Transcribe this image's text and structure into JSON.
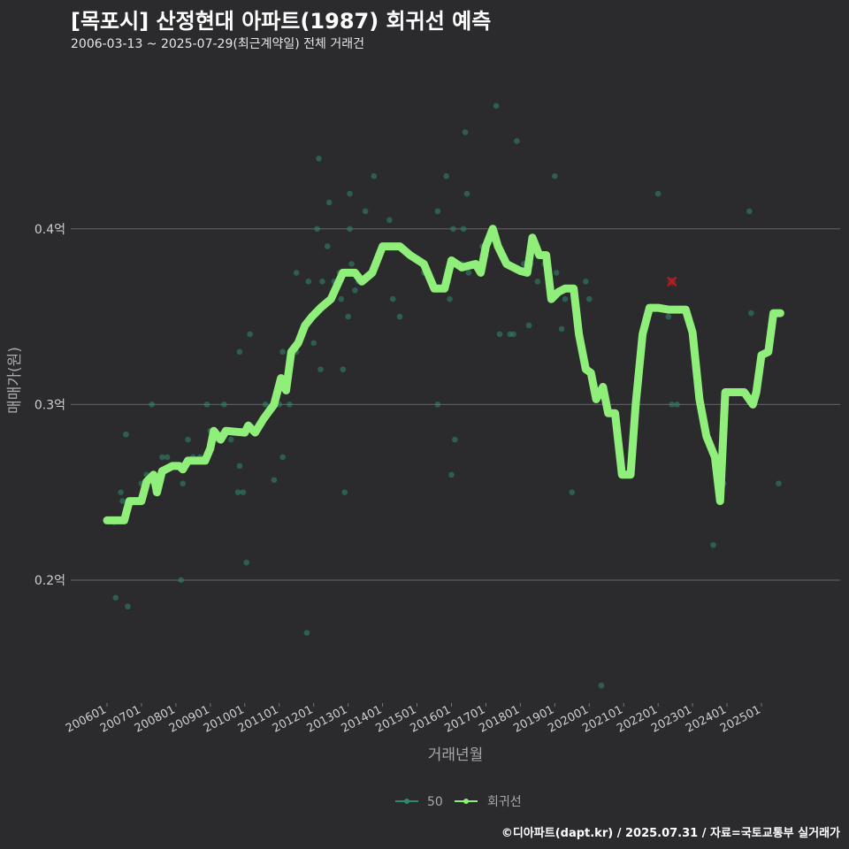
{
  "header": {
    "title": "[목포시] 산정현대 아파트(1987) 회귀선 예측",
    "subtitle": "2006-03-13 ~ 2025-07-29(최근계약일) 전체 거래건"
  },
  "footer": {
    "credit": "©디아파트(dapt.kr) / 2025.07.31 / 자료=국토교통부 실거래가"
  },
  "chart_data": {
    "type": "scatter",
    "title": "[목포시] 산정현대 아파트(1987) 회귀선 예측",
    "xlabel": "거래년월",
    "ylabel": "매매가(원)",
    "ylim": [
      0.13,
      0.49
    ],
    "y_ticks": [
      0.2,
      0.3,
      0.4
    ],
    "y_tick_labels": [
      "0.2억",
      "0.3억",
      "0.4억"
    ],
    "x_ticks": [
      2006,
      2007,
      2008,
      2009,
      2010,
      2011,
      2012,
      2013,
      2014,
      2015,
      2016,
      2017,
      2018,
      2019,
      2020,
      2021,
      2022,
      2023,
      2024,
      2025
    ],
    "x_tick_labels": [
      "200601",
      "200701",
      "200801",
      "200901",
      "201001",
      "201101",
      "201201",
      "201301",
      "201401",
      "201501",
      "201601",
      "201701",
      "201801",
      "201901",
      "202001",
      "202101",
      "202201",
      "202301",
      "202401",
      "202501"
    ],
    "xlim": [
      2005.85,
      2025.85
    ],
    "legend": {
      "position": "bottom",
      "entries": [
        "50",
        "회귀선"
      ]
    },
    "colors": {
      "points": "#2e8b73",
      "regression": "#90ee7a",
      "outlier": "#b22222",
      "grid": "#5a5a5a",
      "background": "#2b2a2c"
    },
    "series": [
      {
        "name": "50",
        "type": "scatter",
        "points": [
          [
            2006.2,
            0.233
          ],
          [
            2006.25,
            0.19
          ],
          [
            2006.4,
            0.25
          ],
          [
            2006.45,
            0.245
          ],
          [
            2006.55,
            0.283
          ],
          [
            2006.6,
            0.185
          ],
          [
            2006.7,
            0.245
          ],
          [
            2007.0,
            0.255
          ],
          [
            2007.15,
            0.26
          ],
          [
            2007.3,
            0.3
          ],
          [
            2007.4,
            0.25
          ],
          [
            2007.6,
            0.27
          ],
          [
            2007.75,
            0.27
          ],
          [
            2007.9,
            0.265
          ],
          [
            2008.1,
            0.265
          ],
          [
            2008.15,
            0.2
          ],
          [
            2008.2,
            0.255
          ],
          [
            2008.35,
            0.28
          ],
          [
            2008.5,
            0.27
          ],
          [
            2008.7,
            0.27
          ],
          [
            2008.9,
            0.3
          ],
          [
            2009.0,
            0.285
          ],
          [
            2009.2,
            0.28
          ],
          [
            2009.4,
            0.3
          ],
          [
            2009.6,
            0.28
          ],
          [
            2009.8,
            0.25
          ],
          [
            2009.85,
            0.265
          ],
          [
            2009.85,
            0.33
          ],
          [
            2009.95,
            0.25
          ],
          [
            2010.05,
            0.21
          ],
          [
            2010.15,
            0.34
          ],
          [
            2010.6,
            0.3
          ],
          [
            2010.85,
            0.257
          ],
          [
            2011.0,
            0.3
          ],
          [
            2011.1,
            0.27
          ],
          [
            2011.1,
            0.33
          ],
          [
            2011.3,
            0.3
          ],
          [
            2011.5,
            0.33
          ],
          [
            2011.5,
            0.375
          ],
          [
            2011.8,
            0.17
          ],
          [
            2011.85,
            0.37
          ],
          [
            2012.0,
            0.335
          ],
          [
            2012.1,
            0.4
          ],
          [
            2012.15,
            0.44
          ],
          [
            2012.2,
            0.32
          ],
          [
            2012.25,
            0.37
          ],
          [
            2012.4,
            0.39
          ],
          [
            2012.45,
            0.415
          ],
          [
            2012.6,
            0.37
          ],
          [
            2012.75,
            0.375
          ],
          [
            2012.8,
            0.36
          ],
          [
            2012.85,
            0.32
          ],
          [
            2012.9,
            0.25
          ],
          [
            2013.0,
            0.35
          ],
          [
            2013.05,
            0.4
          ],
          [
            2013.05,
            0.42
          ],
          [
            2013.1,
            0.38
          ],
          [
            2013.2,
            0.365
          ],
          [
            2013.3,
            0.37
          ],
          [
            2013.5,
            0.41
          ],
          [
            2013.7,
            0.375
          ],
          [
            2013.75,
            0.43
          ],
          [
            2014.1,
            0.39
          ],
          [
            2014.2,
            0.405
          ],
          [
            2014.3,
            0.36
          ],
          [
            2014.5,
            0.35
          ],
          [
            2015.2,
            0.375
          ],
          [
            2015.6,
            0.41
          ],
          [
            2015.6,
            0.3
          ],
          [
            2015.85,
            0.43
          ],
          [
            2015.9,
            0.37
          ],
          [
            2015.95,
            0.36
          ],
          [
            2016.0,
            0.26
          ],
          [
            2016.05,
            0.4
          ],
          [
            2016.1,
            0.28
          ],
          [
            2016.3,
            0.38
          ],
          [
            2016.35,
            0.4
          ],
          [
            2016.4,
            0.455
          ],
          [
            2016.45,
            0.42
          ],
          [
            2016.5,
            0.375
          ],
          [
            2016.8,
            0.38
          ],
          [
            2016.9,
            0.39
          ],
          [
            2017.0,
            0.385
          ],
          [
            2017.3,
            0.47
          ],
          [
            2017.4,
            0.34
          ],
          [
            2017.7,
            0.34
          ],
          [
            2017.8,
            0.34
          ],
          [
            2017.9,
            0.45
          ],
          [
            2018.1,
            0.38
          ],
          [
            2018.25,
            0.345
          ],
          [
            2018.3,
            0.38
          ],
          [
            2018.5,
            0.37
          ],
          [
            2018.7,
            0.38
          ],
          [
            2018.9,
            0.36
          ],
          [
            2019.0,
            0.43
          ],
          [
            2019.05,
            0.375
          ],
          [
            2019.2,
            0.343
          ],
          [
            2019.3,
            0.36
          ],
          [
            2019.5,
            0.25
          ],
          [
            2019.9,
            0.37
          ],
          [
            2020.0,
            0.36
          ],
          [
            2020.35,
            0.14
          ],
          [
            2022.0,
            0.42
          ],
          [
            2022.3,
            0.35
          ],
          [
            2022.4,
            0.3
          ],
          [
            2022.55,
            0.3
          ],
          [
            2023.6,
            0.22
          ],
          [
            2023.9,
            0.255
          ],
          [
            2024.65,
            0.41
          ],
          [
            2024.7,
            0.352
          ],
          [
            2025.5,
            0.255
          ]
        ]
      },
      {
        "name": "회귀선",
        "type": "line",
        "points": [
          [
            2006.0,
            0.234
          ],
          [
            2006.5,
            0.234
          ],
          [
            2006.65,
            0.245
          ],
          [
            2007.0,
            0.245
          ],
          [
            2007.15,
            0.256
          ],
          [
            2007.35,
            0.26
          ],
          [
            2007.45,
            0.25
          ],
          [
            2007.6,
            0.262
          ],
          [
            2007.9,
            0.265
          ],
          [
            2008.1,
            0.265
          ],
          [
            2008.2,
            0.263
          ],
          [
            2008.35,
            0.268
          ],
          [
            2008.85,
            0.268
          ],
          [
            2009.0,
            0.275
          ],
          [
            2009.1,
            0.285
          ],
          [
            2009.3,
            0.28
          ],
          [
            2009.45,
            0.285
          ],
          [
            2010.0,
            0.284
          ],
          [
            2010.1,
            0.288
          ],
          [
            2010.3,
            0.284
          ],
          [
            2010.55,
            0.292
          ],
          [
            2010.85,
            0.3
          ],
          [
            2011.05,
            0.315
          ],
          [
            2011.2,
            0.308
          ],
          [
            2011.35,
            0.33
          ],
          [
            2011.55,
            0.335
          ],
          [
            2011.75,
            0.345
          ],
          [
            2011.95,
            0.35
          ],
          [
            2012.2,
            0.355
          ],
          [
            2012.5,
            0.36
          ],
          [
            2012.85,
            0.375
          ],
          [
            2013.2,
            0.375
          ],
          [
            2013.4,
            0.37
          ],
          [
            2013.7,
            0.375
          ],
          [
            2014.0,
            0.39
          ],
          [
            2014.5,
            0.39
          ],
          [
            2014.8,
            0.385
          ],
          [
            2015.2,
            0.38
          ],
          [
            2015.5,
            0.366
          ],
          [
            2015.8,
            0.366
          ],
          [
            2016.0,
            0.382
          ],
          [
            2016.3,
            0.378
          ],
          [
            2016.7,
            0.38
          ],
          [
            2016.85,
            0.375
          ],
          [
            2017.0,
            0.39
          ],
          [
            2017.2,
            0.4
          ],
          [
            2017.35,
            0.39
          ],
          [
            2017.6,
            0.38
          ],
          [
            2018.0,
            0.376
          ],
          [
            2018.2,
            0.375
          ],
          [
            2018.35,
            0.395
          ],
          [
            2018.55,
            0.385
          ],
          [
            2018.75,
            0.385
          ],
          [
            2018.9,
            0.36
          ],
          [
            2019.1,
            0.364
          ],
          [
            2019.3,
            0.366
          ],
          [
            2019.55,
            0.366
          ],
          [
            2019.7,
            0.34
          ],
          [
            2019.9,
            0.32
          ],
          [
            2020.05,
            0.318
          ],
          [
            2020.2,
            0.303
          ],
          [
            2020.4,
            0.31
          ],
          [
            2020.55,
            0.295
          ],
          [
            2020.75,
            0.295
          ],
          [
            2020.95,
            0.26
          ],
          [
            2021.2,
            0.26
          ],
          [
            2021.35,
            0.3
          ],
          [
            2021.55,
            0.34
          ],
          [
            2021.75,
            0.355
          ],
          [
            2022.0,
            0.355
          ],
          [
            2022.3,
            0.354
          ],
          [
            2022.6,
            0.354
          ],
          [
            2022.8,
            0.354
          ],
          [
            2023.0,
            0.341
          ],
          [
            2023.2,
            0.303
          ],
          [
            2023.4,
            0.282
          ],
          [
            2023.65,
            0.27
          ],
          [
            2023.8,
            0.245
          ],
          [
            2023.95,
            0.307
          ],
          [
            2024.2,
            0.307
          ],
          [
            2024.5,
            0.307
          ],
          [
            2024.75,
            0.3
          ],
          [
            2024.85,
            0.307
          ],
          [
            2025.0,
            0.328
          ],
          [
            2025.2,
            0.33
          ],
          [
            2025.35,
            0.352
          ],
          [
            2025.55,
            0.352
          ]
        ]
      },
      {
        "name": "outlier",
        "type": "marker",
        "points": [
          [
            2022.4,
            0.37
          ]
        ]
      }
    ]
  }
}
